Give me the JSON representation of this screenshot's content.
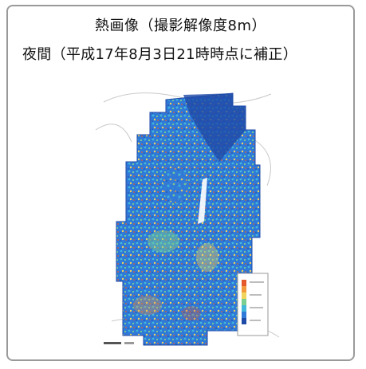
{
  "caption": {
    "line1": "熱画像（撮影解像度8m）",
    "line2": "夜間（平成17年8月3日21時時点に補正）"
  },
  "figure": {
    "icon": "thermal-map-image",
    "colors": {
      "deep_blue": "#1f4aa8",
      "blue": "#2f79d8",
      "cyan": "#43b7da",
      "green": "#7bcf8e",
      "yellow": "#f0d45c",
      "orange": "#f29a3b",
      "red": "#e45a2c"
    }
  }
}
